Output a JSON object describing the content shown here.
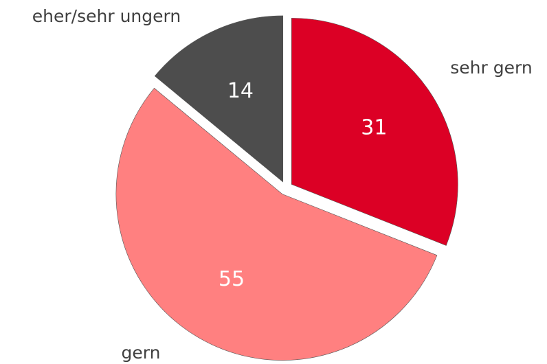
{
  "chart_data": {
    "type": "pie",
    "categories": [
      "sehr gern",
      "gern",
      "eher/sehr ungern"
    ],
    "values": [
      31,
      55,
      14
    ],
    "colors": [
      "#dc0025",
      "#ff8080",
      "#4d4d4d"
    ],
    "start_angle": 0,
    "direction": "clockwise",
    "exploded": true
  }
}
